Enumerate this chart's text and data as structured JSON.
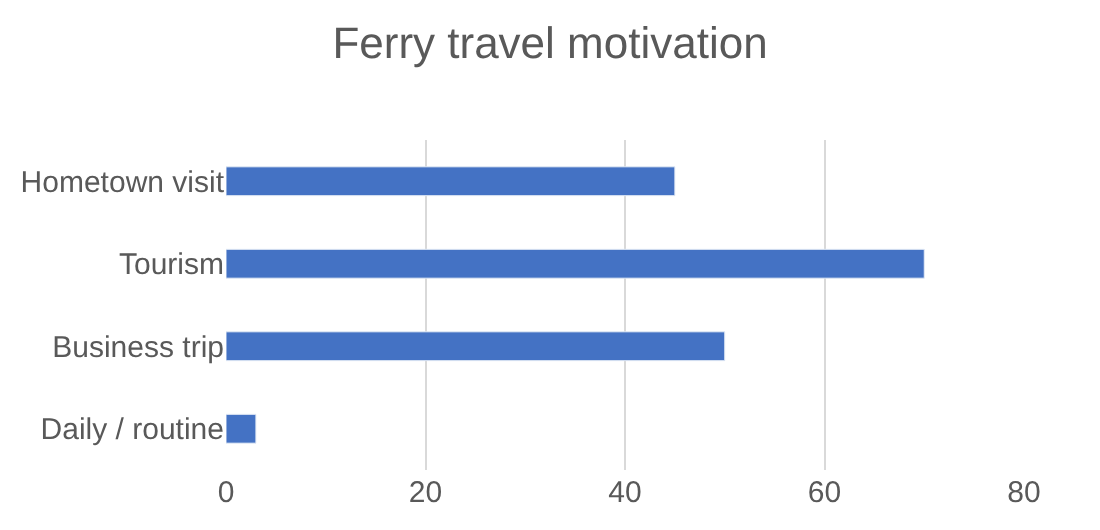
{
  "chart_data": {
    "type": "bar",
    "orientation": "horizontal",
    "title": "Ferry travel motivation",
    "categories": [
      "Hometown visit",
      "Tourism",
      "Business trip",
      "Daily / routine"
    ],
    "values": [
      45,
      70,
      50,
      3
    ],
    "color": "#4472c4",
    "xlim": [
      0,
      80
    ],
    "xticks": [
      0,
      20,
      40,
      60,
      80
    ],
    "grid": "x"
  }
}
